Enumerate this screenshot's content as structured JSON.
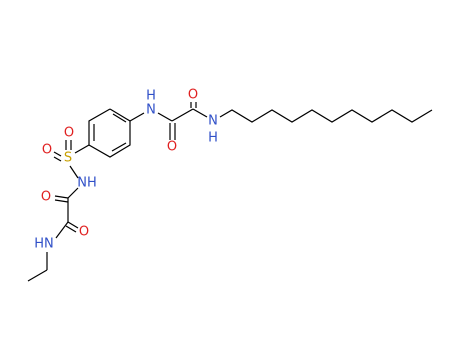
{
  "atoms": {
    "amide_top_n": "N",
    "amide_top_h": "H",
    "oxo_1": "O",
    "oxo_2": "O",
    "amide_right_n": "N",
    "amide_right_h": "H",
    "sulfur": "S",
    "sulfonyl_o_1": "O",
    "sulfonyl_o_2": "O",
    "sulfonamide_nh": "NH",
    "oxo_3": "O",
    "oxo_4": "O",
    "methylamide_hn": "HN"
  }
}
